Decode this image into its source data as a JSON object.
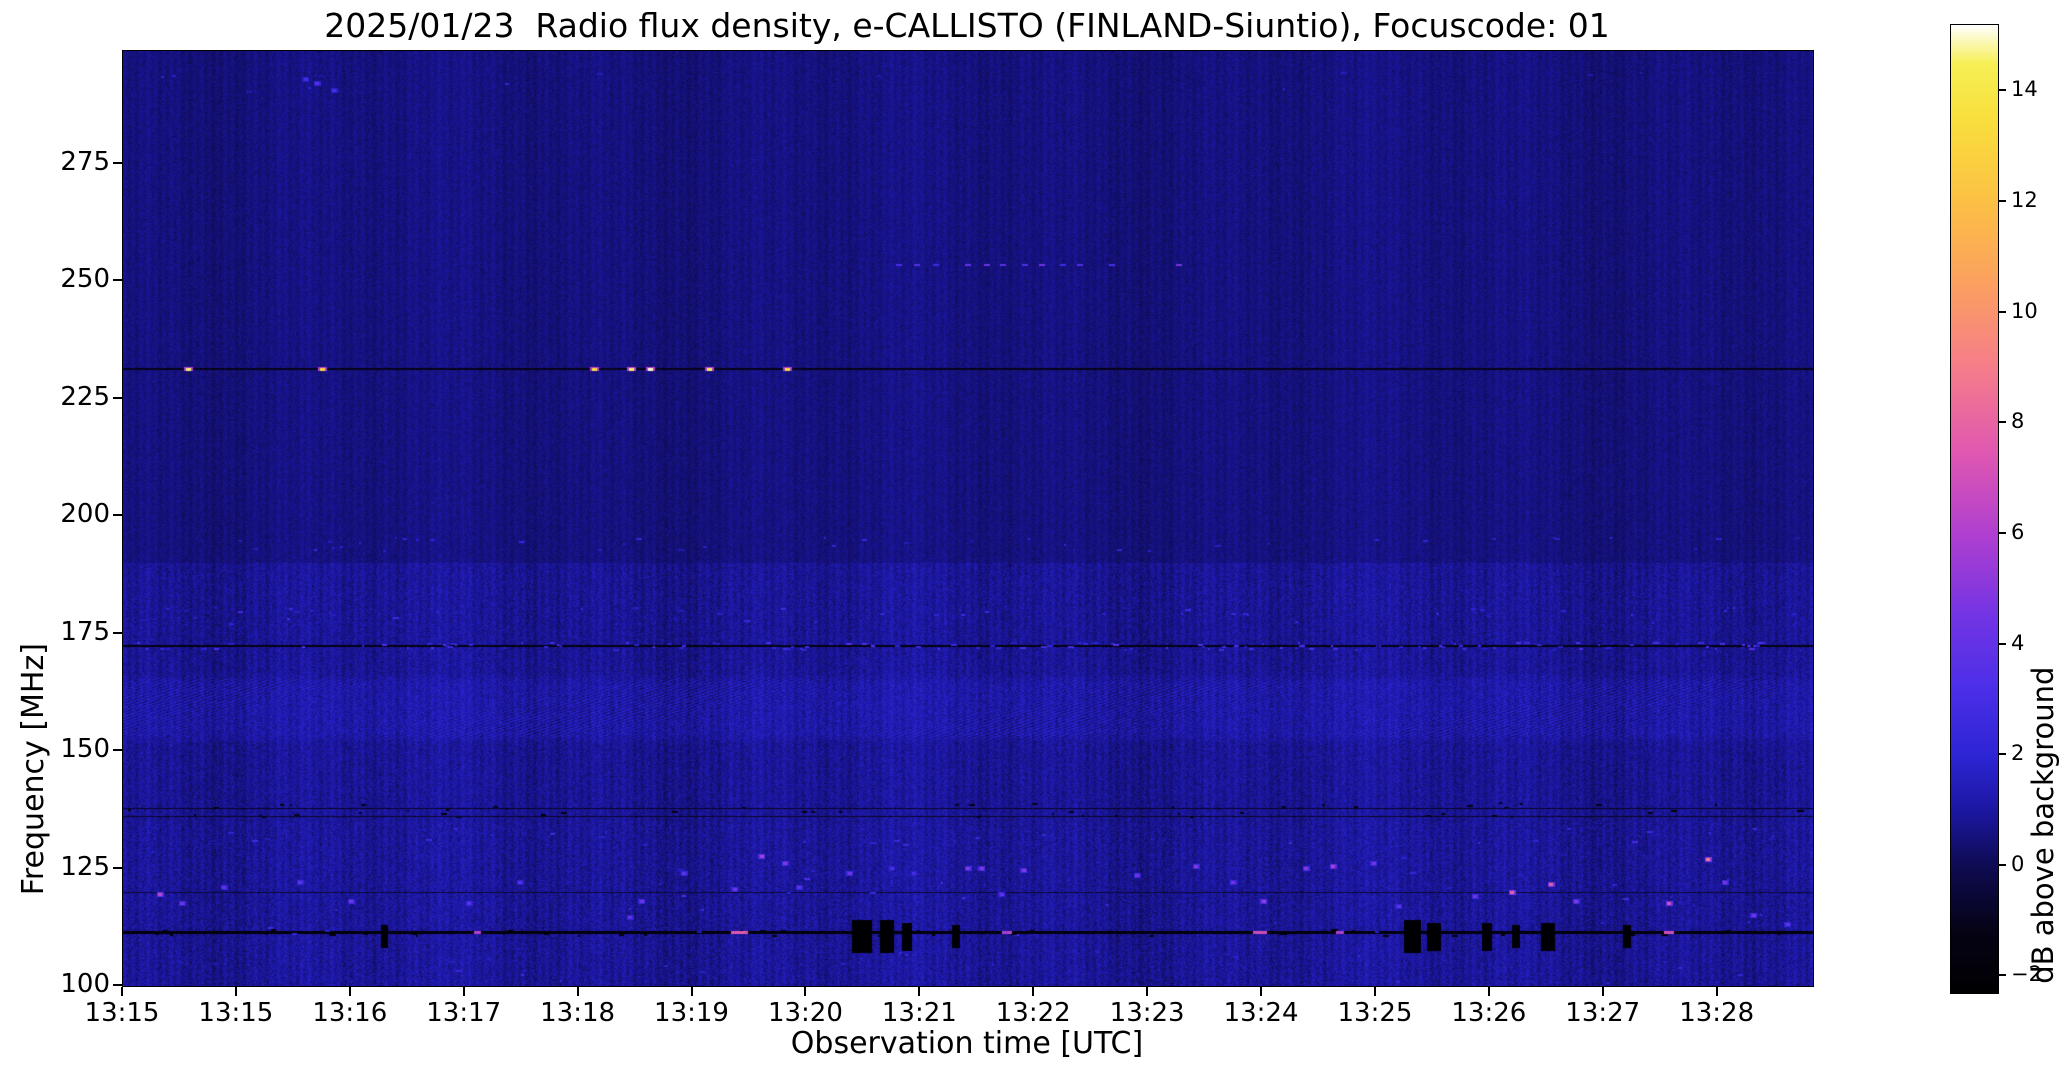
{
  "chart_data": {
    "type": "heatmap",
    "title": "2025/01/23  Radio flux density, e-CALLISTO (FINLAND-Siuntio), Focuscode: 01",
    "date": "2025/01/23",
    "instrument": "e-CALLISTO",
    "station": "FINLAND-Siuntio",
    "focuscode": "01",
    "xlabel": "Observation time [UTC]",
    "ylabel": "Frequency [MHz]",
    "colorbar_label": "dB above background",
    "x_tick_labels": [
      "13:15",
      "13:15",
      "13:16",
      "13:17",
      "13:18",
      "13:19",
      "13:20",
      "13:21",
      "13:22",
      "13:23",
      "13:24",
      "13:25",
      "13:26",
      "13:27",
      "13:28"
    ],
    "x_tick_spacing_frac": 0.0674,
    "y_ticks": [
      {
        "v": 100,
        "label": "100"
      },
      {
        "v": 125,
        "label": "125"
      },
      {
        "v": 150,
        "label": "150"
      },
      {
        "v": 175,
        "label": "175"
      },
      {
        "v": 200,
        "label": "200"
      },
      {
        "v": 225,
        "label": "225"
      },
      {
        "v": 250,
        "label": "250"
      },
      {
        "v": 275,
        "label": "275"
      }
    ],
    "ylim": [
      100,
      299
    ],
    "colorbar_ticks": [
      {
        "v": -2,
        "label": "−2"
      },
      {
        "v": 0,
        "label": "0"
      },
      {
        "v": 2,
        "label": "2"
      },
      {
        "v": 4,
        "label": "4"
      },
      {
        "v": 6,
        "label": "6"
      },
      {
        "v": 8,
        "label": "8"
      },
      {
        "v": 10,
        "label": "10"
      },
      {
        "v": 12,
        "label": "12"
      },
      {
        "v": 14,
        "label": "14"
      }
    ],
    "value_range": [
      -2.3,
      15.2
    ],
    "colormap_stops": [
      {
        "v": -2.3,
        "c": "#000002"
      },
      {
        "v": -1.2,
        "c": "#050314"
      },
      {
        "v": 0.0,
        "c": "#0e0b52"
      },
      {
        "v": 1.0,
        "c": "#1c17a2"
      },
      {
        "v": 2.0,
        "c": "#2d25d4"
      },
      {
        "v": 3.2,
        "c": "#4b2fe8"
      },
      {
        "v": 4.5,
        "c": "#7234e4"
      },
      {
        "v": 6.0,
        "c": "#b03fd0"
      },
      {
        "v": 7.5,
        "c": "#e058b0"
      },
      {
        "v": 9.0,
        "c": "#f57d8a"
      },
      {
        "v": 10.5,
        "c": "#fb9f60"
      },
      {
        "v": 12.0,
        "c": "#fcc044"
      },
      {
        "v": 13.5,
        "c": "#f8df3c"
      },
      {
        "v": 14.5,
        "c": "#f6ef55"
      },
      {
        "v": 15.2,
        "c": "#ffffff"
      }
    ],
    "background_db": {
      "upper_band": 0.55,
      "lower_band": 0.85
    },
    "texture_bands": [
      {
        "f_min": 151.5,
        "f_max": 166.5,
        "style": "diagonal-hatch"
      }
    ],
    "interference_lines": [
      {
        "freq": 231.3,
        "h": 2,
        "db": -1.2
      },
      {
        "freq": 172.3,
        "h": 2,
        "db": -1.4
      },
      {
        "freq": 111.3,
        "h": 3,
        "db": -1.8
      },
      {
        "freq": 137.8,
        "h": 1,
        "db": -0.9
      },
      {
        "freq": 136.0,
        "h": 1,
        "db": -0.8
      },
      {
        "freq": 119.8,
        "h": 1,
        "db": -0.5
      }
    ],
    "speckle_rows": [
      {
        "freq": 172.3,
        "spread": 0.8,
        "prob": 0.22,
        "db_min": 1.5,
        "db_max": 3.6
      },
      {
        "freq": 178.8,
        "spread": 1.8,
        "prob": 0.1,
        "db_min": 1.2,
        "db_max": 2.8
      },
      {
        "freq": 194.0,
        "spread": 1.5,
        "prob": 0.05,
        "db_min": 1.2,
        "db_max": 2.4
      },
      {
        "freq": 292.0,
        "spread": 2.5,
        "prob": 0.03,
        "db_min": 1.0,
        "db_max": 2.2
      },
      {
        "freq": 121.0,
        "spread": 11.0,
        "prob": 0.06,
        "db_min": 1.0,
        "db_max": 3.4
      },
      {
        "freq": 104.0,
        "spread": 3.5,
        "prob": 0.05,
        "db_min": 1.0,
        "db_max": 2.6
      },
      {
        "freq": 131.5,
        "spread": 2.0,
        "prob": 0.07,
        "db_min": 1.0,
        "db_max": 3.0
      },
      {
        "freq": 137.5,
        "spread": 1.5,
        "prob": 0.09,
        "db_min": -1.8,
        "db_max": -0.8
      },
      {
        "freq": 111.3,
        "spread": 0.6,
        "prob": 0.1,
        "db_min": -2.2,
        "db_max": -1.5
      }
    ],
    "features": {
      "bright_dots_231": [
        {
          "t": 0.039,
          "db": 14.5
        },
        {
          "t": 0.118,
          "db": 13.0
        },
        {
          "t": 0.279,
          "db": 13.5
        },
        {
          "t": 0.301,
          "db": 14.5
        },
        {
          "t": 0.312,
          "db": 15.0
        },
        {
          "t": 0.347,
          "db": 14.5
        },
        {
          "t": 0.393,
          "db": 13.5
        }
      ],
      "dash_row_253": [
        {
          "t": 0.459,
          "db": 3.2
        },
        {
          "t": 0.47,
          "db": 3.6
        },
        {
          "t": 0.481,
          "db": 3.0
        },
        {
          "t": 0.5,
          "db": 4.0
        },
        {
          "t": 0.511,
          "db": 4.4
        },
        {
          "t": 0.521,
          "db": 3.8
        },
        {
          "t": 0.534,
          "db": 3.4
        },
        {
          "t": 0.544,
          "db": 4.4
        },
        {
          "t": 0.556,
          "db": 3.0
        },
        {
          "t": 0.566,
          "db": 3.4
        },
        {
          "t": 0.585,
          "db": 3.0
        },
        {
          "t": 0.625,
          "db": 4.6
        }
      ],
      "line111_bursts": [
        {
          "t": 0.21,
          "w": 0.004,
          "db": 6.0
        },
        {
          "t": 0.365,
          "w": 0.01,
          "db": 7.5
        },
        {
          "t": 0.523,
          "w": 0.006,
          "db": 6.0
        },
        {
          "t": 0.673,
          "w": 0.008,
          "db": 7.0
        },
        {
          "t": 0.72,
          "w": 0.005,
          "db": 6.0
        },
        {
          "t": 0.915,
          "w": 0.006,
          "db": 7.0
        }
      ],
      "dark_blobs": [
        {
          "t": 0.155,
          "f": 110.5,
          "w": 0.004,
          "h": 5,
          "db": -2.1
        },
        {
          "t": 0.437,
          "f": 110.5,
          "w": 0.012,
          "h": 7,
          "db": -2.2
        },
        {
          "t": 0.452,
          "f": 110.5,
          "w": 0.008,
          "h": 7,
          "db": -2.2
        },
        {
          "t": 0.464,
          "f": 110.5,
          "w": 0.006,
          "h": 6,
          "db": -2.1
        },
        {
          "t": 0.493,
          "f": 110.5,
          "w": 0.005,
          "h": 5,
          "db": -2.0
        },
        {
          "t": 0.763,
          "f": 110.5,
          "w": 0.01,
          "h": 7,
          "db": -2.2
        },
        {
          "t": 0.776,
          "f": 110.5,
          "w": 0.008,
          "h": 6,
          "db": -2.2
        },
        {
          "t": 0.807,
          "f": 110.5,
          "w": 0.006,
          "h": 6,
          "db": -2.1
        },
        {
          "t": 0.824,
          "f": 110.5,
          "w": 0.005,
          "h": 5,
          "db": -2.0
        },
        {
          "t": 0.843,
          "f": 110.5,
          "w": 0.008,
          "h": 6,
          "db": -2.2
        },
        {
          "t": 0.89,
          "f": 110.5,
          "w": 0.005,
          "h": 5,
          "db": -2.1
        }
      ],
      "pink_spots": [
        {
          "t": 0.022,
          "f": 119.5,
          "db": 6.5
        },
        {
          "t": 0.035,
          "f": 117.5,
          "db": 4.5
        },
        {
          "t": 0.06,
          "f": 121,
          "db": 4.0
        },
        {
          "t": 0.105,
          "f": 122,
          "db": 4.0
        },
        {
          "t": 0.135,
          "f": 118,
          "db": 4.5
        },
        {
          "t": 0.205,
          "f": 117.5,
          "db": 4.0
        },
        {
          "t": 0.235,
          "f": 122,
          "db": 3.5
        },
        {
          "t": 0.3,
          "f": 114.5,
          "db": 4.0
        },
        {
          "t": 0.307,
          "f": 118,
          "db": 4.5
        },
        {
          "t": 0.332,
          "f": 124,
          "db": 4.0
        },
        {
          "t": 0.362,
          "f": 120.5,
          "db": 4.5
        },
        {
          "t": 0.378,
          "f": 127.5,
          "db": 6.0
        },
        {
          "t": 0.392,
          "f": 126,
          "db": 5.0
        },
        {
          "t": 0.4,
          "f": 121,
          "db": 4.0
        },
        {
          "t": 0.43,
          "f": 124,
          "db": 4.5
        },
        {
          "t": 0.455,
          "f": 125,
          "db": 3.2
        },
        {
          "t": 0.468,
          "f": 124,
          "db": 3.0
        },
        {
          "t": 0.5,
          "f": 125,
          "db": 5.0
        },
        {
          "t": 0.508,
          "f": 125,
          "db": 5.0
        },
        {
          "t": 0.52,
          "f": 119.5,
          "db": 4.0
        },
        {
          "t": 0.533,
          "f": 124.5,
          "db": 5.0
        },
        {
          "t": 0.6,
          "f": 123.5,
          "db": 4.5
        },
        {
          "t": 0.635,
          "f": 125.5,
          "db": 5.0
        },
        {
          "t": 0.657,
          "f": 122,
          "db": 4.5
        },
        {
          "t": 0.675,
          "f": 118,
          "db": 5.5
        },
        {
          "t": 0.7,
          "f": 125,
          "db": 5.0
        },
        {
          "t": 0.716,
          "f": 125.5,
          "db": 6.0
        },
        {
          "t": 0.74,
          "f": 126,
          "db": 4.5
        },
        {
          "t": 0.755,
          "f": 117,
          "db": 4.0
        },
        {
          "t": 0.8,
          "f": 119,
          "db": 4.5
        },
        {
          "t": 0.822,
          "f": 120,
          "db": 8.0
        },
        {
          "t": 0.845,
          "f": 121.5,
          "db": 8.0
        },
        {
          "t": 0.86,
          "f": 118,
          "db": 5.0
        },
        {
          "t": 0.915,
          "f": 117.5,
          "db": 7.0
        },
        {
          "t": 0.938,
          "f": 127,
          "db": 9.0
        },
        {
          "t": 0.948,
          "f": 122,
          "db": 4.5
        },
        {
          "t": 0.965,
          "f": 115,
          "db": 4.5
        },
        {
          "t": 0.985,
          "f": 113,
          "db": 4.0
        },
        {
          "t": 0.108,
          "f": 293,
          "db": 3.0
        },
        {
          "t": 0.115,
          "f": 292,
          "db": 3.5
        },
        {
          "t": 0.125,
          "f": 290.5,
          "db": 3.2
        }
      ]
    }
  }
}
